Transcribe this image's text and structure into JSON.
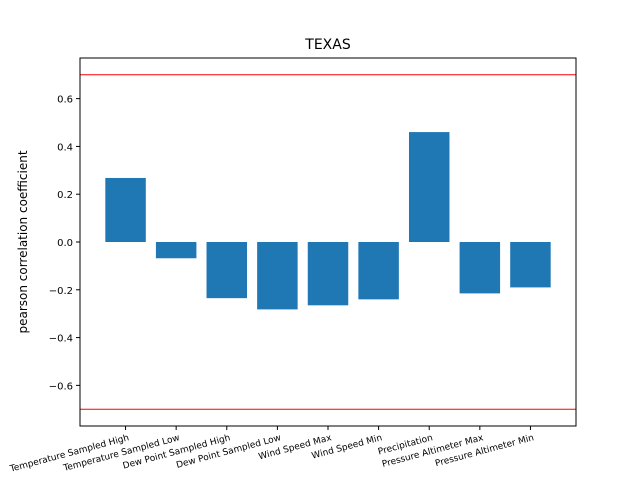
{
  "chart_data": {
    "type": "bar",
    "title": "TEXAS",
    "xlabel": "",
    "ylabel": "pearson correlation coefficient",
    "categories": [
      "Temperature Sampled High",
      "Temperature Sampled Low",
      "Dew Point Sampled High",
      "Dew Point Sampled Low",
      "Wind Speed Max",
      "Wind Speed Min",
      "Precipitation",
      "Pressure Altimeter Max",
      "Pressure Altimeter Min"
    ],
    "values": [
      0.268,
      -0.068,
      -0.235,
      -0.282,
      -0.265,
      -0.24,
      0.46,
      -0.215,
      -0.19
    ],
    "ylim": [
      -0.77,
      0.77
    ],
    "yticks": [
      -0.6,
      -0.4,
      -0.2,
      0.0,
      0.2,
      0.4,
      0.6
    ],
    "ytick_labels": [
      "−0.6",
      "−0.4",
      "−0.2",
      "0.0",
      "0.2",
      "0.4",
      "0.6"
    ],
    "reference_lines": [
      0.7,
      -0.7
    ],
    "bar_color": "#1f77b4",
    "reference_line_color": "#ff0000",
    "grid": false,
    "legend": "none"
  }
}
